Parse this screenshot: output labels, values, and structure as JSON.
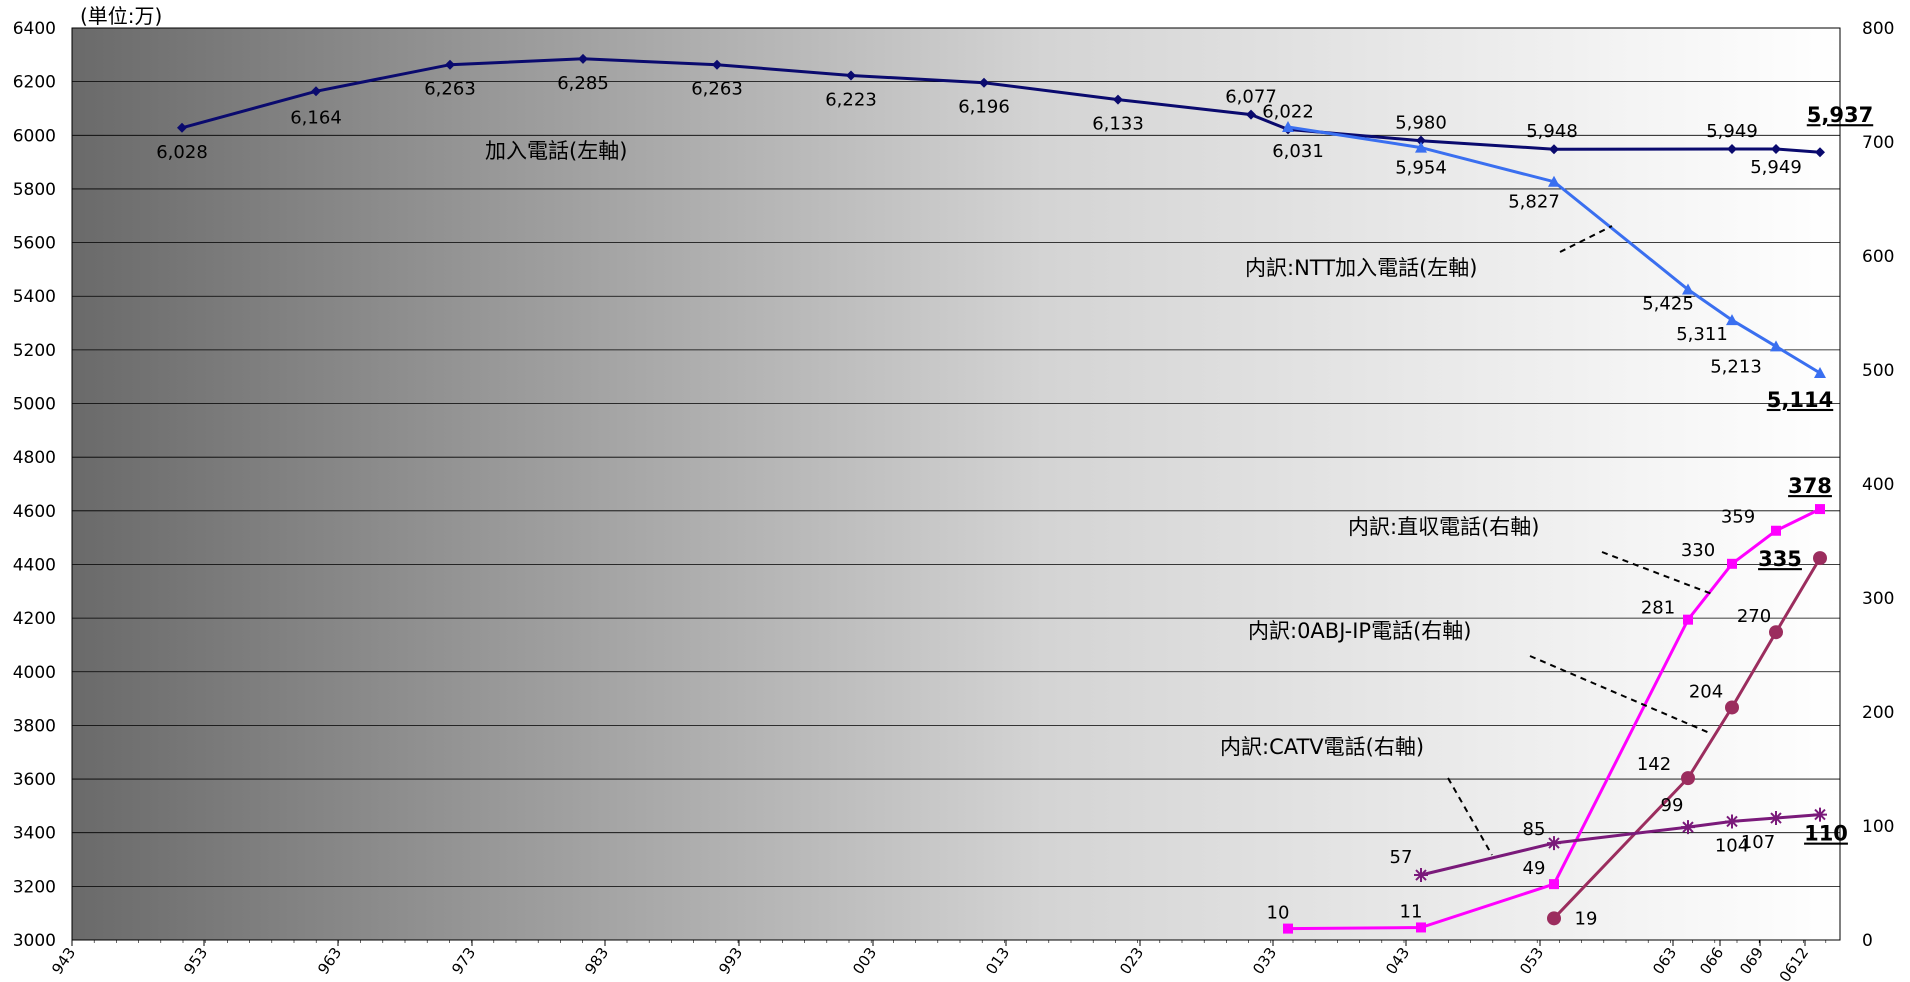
{
  "chart_data": {
    "type": "line",
    "unit_label": "(単位:万)",
    "left_axis": {
      "min": 3000,
      "max": 6400,
      "step": 200
    },
    "right_axis": {
      "min": 0,
      "max": 800,
      "step": 100
    },
    "grid": true,
    "x": [
      "943",
      "949",
      "953",
      "959",
      "963",
      "969",
      "973",
      "979",
      "983",
      "989",
      "993",
      "999",
      "003",
      "009",
      "013",
      "019",
      "023",
      "029",
      "033",
      "039",
      "043",
      "049",
      "053",
      "059",
      "063",
      "066",
      "069",
      "0612"
    ],
    "x_tick_labels": [
      "943",
      "953",
      "963",
      "973",
      "983",
      "993",
      "003",
      "013",
      "023",
      "033",
      "043",
      "053",
      "063",
      "066",
      "069",
      "0612"
    ],
    "series": [
      {
        "name": "加入電話(左軸)",
        "axis": "left",
        "color": "#0a0a6e",
        "marker": "diamond",
        "x": [
          "949",
          "959",
          "969",
          "979",
          "989",
          "999",
          "009",
          "019",
          "029",
          "039",
          "049",
          "059",
          "066",
          "069",
          "0612"
        ],
        "values": [
          6028,
          6164,
          6263,
          6285,
          6263,
          6223,
          6196,
          6133,
          6077,
          6022,
          5980,
          5948,
          5949,
          5949,
          5937
        ],
        "labels": [
          "6,028",
          "6,164",
          "6,263",
          "6,285",
          "6,263",
          "6,223",
          "6,196",
          "6,133",
          "6,077",
          "6,022",
          "5,980",
          "5,948",
          "5,949",
          "5,949",
          "5,937"
        ]
      },
      {
        "name": "内訳:NTT加入電話(左軸)",
        "axis": "left",
        "color": "#3a6ff0",
        "marker": "triangle",
        "x": [
          "039",
          "049",
          "059",
          "069i",
          "066",
          "069",
          "0612"
        ],
        "values": [
          6031,
          5954,
          5827,
          5425,
          5311,
          5213,
          5114
        ],
        "labels": [
          "6,031",
          "5,954",
          "5,827",
          "5,425",
          "5,311",
          "5,213",
          "5,114"
        ]
      },
      {
        "name": "内訳:直収電話(右軸)",
        "axis": "right",
        "color": "#ff00ff",
        "marker": "square",
        "x": [
          "039",
          "049",
          "059",
          "069i",
          "066",
          "069",
          "0612"
        ],
        "values": [
          10,
          11,
          49,
          281,
          330,
          359,
          378
        ],
        "labels": [
          "10",
          "11",
          "49",
          "281",
          "330",
          "359",
          "378"
        ]
      },
      {
        "name": "内訳:0ABJ-IP電話(右軸)",
        "axis": "right",
        "color": "#9b2d5e",
        "marker": "circle",
        "x": [
          "059",
          "069i",
          "066",
          "069",
          "0612"
        ],
        "values": [
          19,
          142,
          204,
          270,
          335
        ],
        "labels": [
          "19",
          "142",
          "204",
          "270",
          "335"
        ]
      },
      {
        "name": "内訳:CATV電話(右軸)",
        "axis": "right",
        "color": "#7a1a7a",
        "marker": "star",
        "x": [
          "049",
          "059",
          "069i",
          "066",
          "069",
          "0612"
        ],
        "values": [
          57,
          85,
          99,
          104,
          107,
          110
        ],
        "labels": [
          "57",
          "85",
          "99",
          "104",
          "107",
          "110"
        ]
      }
    ]
  }
}
